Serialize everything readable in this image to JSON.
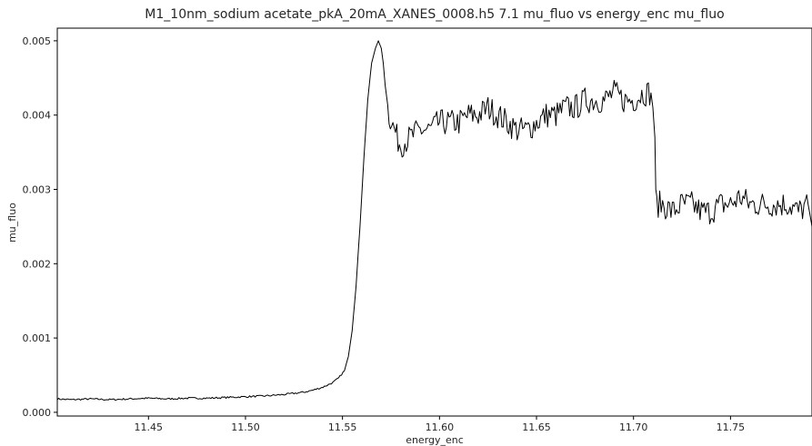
{
  "chart_data": {
    "type": "line",
    "title": "M1_10nm_sodium acetate_pkA_20mA_XANES_0008.h5 7.1 mu_fluo vs energy_enc mu_fluo",
    "xlabel": "energy_enc",
    "ylabel": "mu_fluo",
    "xlim": [
      11.403,
      11.792
    ],
    "ylim": [
      -5e-05,
      0.00517
    ],
    "xticks": [
      "11.45",
      "11.50",
      "11.55",
      "11.60",
      "11.65",
      "11.70",
      "11.75"
    ],
    "yticks": [
      "0.000",
      "0.001",
      "0.002",
      "0.003",
      "0.004",
      "0.005"
    ],
    "grid": false,
    "line_color": "#000000",
    "series": [
      {
        "name": "",
        "x": [
          11.403,
          11.41,
          11.42,
          11.43,
          11.44,
          11.45,
          11.46,
          11.47,
          11.48,
          11.49,
          11.5,
          11.51,
          11.52,
          11.53,
          11.535,
          11.54,
          11.545,
          11.548,
          11.551,
          11.553,
          11.555,
          11.557,
          11.559,
          11.561,
          11.563,
          11.565,
          11.567,
          11.5685,
          11.57,
          11.571,
          11.572,
          11.574,
          11.576,
          11.578,
          11.58,
          11.585,
          11.59,
          11.595,
          11.6,
          11.605,
          11.61,
          11.615,
          11.62,
          11.625,
          11.63,
          11.635,
          11.64,
          11.645,
          11.65,
          11.655,
          11.66,
          11.665,
          11.67,
          11.675,
          11.68,
          11.685,
          11.69,
          11.695,
          11.7,
          11.705,
          11.709,
          11.71,
          11.711,
          11.7115,
          11.712,
          11.715,
          11.72,
          11.725,
          11.73,
          11.735,
          11.74,
          11.745,
          11.75,
          11.755,
          11.76,
          11.765,
          11.77,
          11.775,
          11.78,
          11.785,
          11.79,
          11.792
        ],
        "values": [
          0.00018,
          0.00017,
          0.00018,
          0.00017,
          0.00018,
          0.00019,
          0.00018,
          0.00019,
          0.00019,
          0.0002,
          0.00021,
          0.00022,
          0.00024,
          0.00027,
          0.0003,
          0.00034,
          0.0004,
          0.00046,
          0.00056,
          0.00075,
          0.0011,
          0.0017,
          0.0025,
          0.0034,
          0.0042,
          0.0047,
          0.0049,
          0.005,
          0.0049,
          0.0047,
          0.0044,
          0.004,
          0.0039,
          0.0037,
          0.0036,
          0.0037,
          0.0038,
          0.0038,
          0.0039,
          0.0039,
          0.0039,
          0.004,
          0.004,
          0.0041,
          0.004,
          0.0039,
          0.0038,
          0.0038,
          0.0039,
          0.004,
          0.004,
          0.0041,
          0.0041,
          0.0042,
          0.0042,
          0.0042,
          0.0043,
          0.0042,
          0.0042,
          0.0043,
          0.0043,
          0.0041,
          0.0037,
          0.003,
          0.0028,
          0.0028,
          0.0027,
          0.0028,
          0.0028,
          0.0027,
          0.0027,
          0.0028,
          0.0028,
          0.0029,
          0.0028,
          0.0028,
          0.0028,
          0.0028,
          0.0028,
          0.0027,
          0.0028,
          0.0025
        ]
      }
    ]
  }
}
